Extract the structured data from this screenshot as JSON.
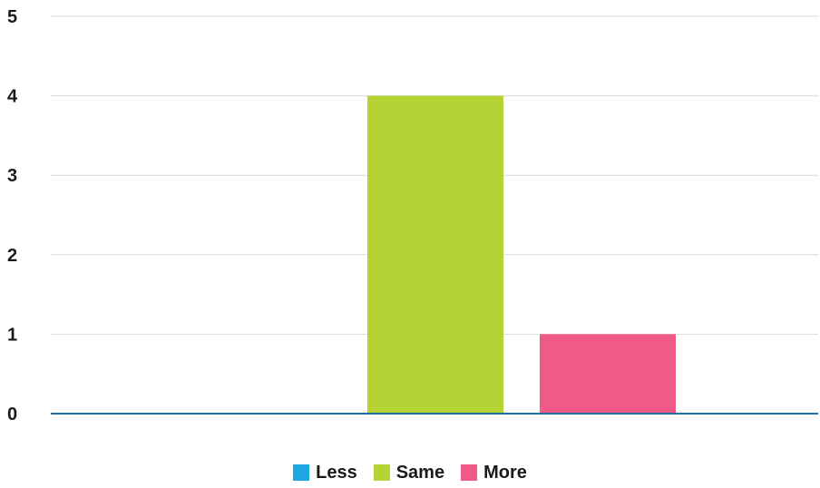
{
  "chart_data": {
    "type": "bar",
    "categories": [
      "Less",
      "Same",
      "More"
    ],
    "values": [
      0,
      4,
      1
    ],
    "colors": [
      "#1ba8e0",
      "#b5d334",
      "#ef5a87"
    ],
    "baseline_color": "#1f6e9e",
    "grid_color": "#d9d9d9",
    "ylim": [
      0,
      5
    ],
    "yticks": [
      "0",
      "1",
      "2",
      "3",
      "4",
      "5"
    ],
    "grid": true,
    "legend_position": "bottom-center",
    "title": "",
    "xlabel": "",
    "ylabel": ""
  },
  "legend": {
    "items": [
      {
        "label": "Less",
        "color": "#1ba8e0"
      },
      {
        "label": "Same",
        "color": "#b5d334"
      },
      {
        "label": "More",
        "color": "#ef5a87"
      }
    ]
  }
}
